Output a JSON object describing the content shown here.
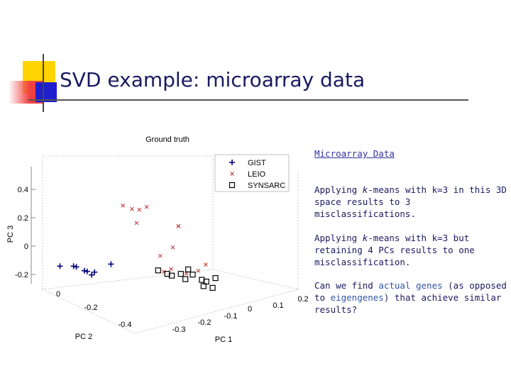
{
  "slide": {
    "title": "SVD example: microarray data",
    "link_text": "Microarray Data",
    "paragraphs": [
      {
        "pre": "Applying ",
        "em": "k",
        "post": "-means with k=3 in this 3D space results to 3 misclassifications."
      },
      {
        "pre": "Applying ",
        "em": "k",
        "post": "-means with k=3 but retaining 4 PCs results to one misclassification."
      }
    ],
    "question": {
      "pre": "Can we find ",
      "hl1": "actual genes",
      "mid": " (as opposed to ",
      "hl2": "eigengenes",
      "post": ") that achieve similar results?"
    }
  },
  "colors": {
    "title": "#1a1a60",
    "accent_yellow": "#ffd400",
    "accent_red": "#f04040",
    "accent_blue": "#1f1fd0",
    "marker": "#000080",
    "x_marker": "#c03030"
  },
  "chart_data": {
    "type": "scatter",
    "title": "Ground truth",
    "xlabel": "PC 1",
    "ylabel": "PC 2",
    "zlabel": "PC 3",
    "x_ticks": [
      "-0.3",
      "-0.2",
      "-0.1",
      "0",
      "0.1",
      "0.2"
    ],
    "y_ticks": [
      "-0.4",
      "-0.2",
      "0"
    ],
    "z_ticks": [
      "0.4",
      "0.2",
      "0",
      "-0.2"
    ],
    "legend_position": "top-right",
    "series": [
      {
        "name": "GIST",
        "marker": "plus",
        "points": [
          [
            -0.3,
            -0.05,
            0.02
          ],
          [
            -0.27,
            -0.05,
            0.02
          ],
          [
            -0.26,
            -0.04,
            0.01
          ],
          [
            -0.25,
            -0.06,
            0.0
          ],
          [
            -0.24,
            -0.05,
            -0.01
          ],
          [
            -0.22,
            -0.04,
            -0.02
          ],
          [
            -0.23,
            -0.05,
            -0.03
          ],
          [
            -0.18,
            -0.03,
            0.02
          ]
        ]
      },
      {
        "name": "LEIO",
        "marker": "x",
        "points": [
          [
            -0.15,
            -0.02,
            0.35
          ],
          [
            -0.13,
            -0.02,
            0.33
          ],
          [
            -0.11,
            -0.01,
            0.32
          ],
          [
            -0.09,
            0.0,
            0.33
          ],
          [
            -0.12,
            -0.02,
            0.25
          ],
          [
            -0.02,
            0.0,
            0.22
          ],
          [
            -0.04,
            -0.02,
            0.11
          ],
          [
            -0.06,
            0.0,
            0.05
          ],
          [
            -0.04,
            -0.01,
            -0.02
          ],
          [
            -0.06,
            -0.02,
            -0.03
          ],
          [
            -0.01,
            -0.02,
            -0.04
          ],
          [
            0.02,
            -0.01,
            -0.03
          ],
          [
            0.04,
            0.0,
            0.0
          ],
          [
            -0.02,
            0.0,
            0.22
          ]
        ]
      },
      {
        "name": "SYNSARC",
        "marker": "square",
        "points": [
          [
            -0.08,
            -0.04,
            -0.01
          ],
          [
            -0.06,
            -0.04,
            -0.03
          ],
          [
            -0.05,
            -0.04,
            -0.04
          ],
          [
            -0.03,
            -0.04,
            -0.03
          ],
          [
            -0.01,
            -0.03,
            -0.01
          ],
          [
            0.0,
            -0.03,
            -0.04
          ],
          [
            -0.02,
            -0.04,
            -0.06
          ],
          [
            0.02,
            -0.03,
            -0.07
          ],
          [
            0.03,
            -0.03,
            -0.08
          ],
          [
            0.05,
            -0.03,
            -0.06
          ],
          [
            0.02,
            -0.04,
            -0.1
          ],
          [
            0.04,
            -0.04,
            -0.11
          ]
        ]
      }
    ]
  }
}
